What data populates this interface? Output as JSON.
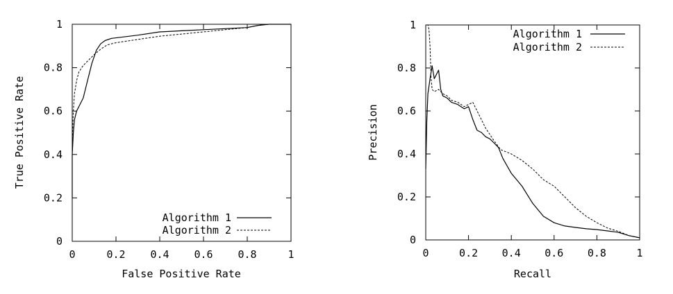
{
  "chart_data": [
    {
      "type": "line",
      "title": "",
      "xlabel": "False Positive Rate",
      "ylabel": "True Positive Rate",
      "xlim": [
        0,
        1
      ],
      "ylim": [
        0,
        1
      ],
      "x_ticks": [
        "0",
        "0.2",
        "0.4",
        "0.6",
        "0.8",
        "1"
      ],
      "y_ticks": [
        "0",
        "0.2",
        "0.4",
        "0.6",
        "0.8",
        "1"
      ],
      "grid": false,
      "legend_position": "bottom-right",
      "series": [
        {
          "name": "Algorithm 1",
          "style": "solid",
          "x": [
            0.0,
            0.0,
            0.005,
            0.01,
            0.02,
            0.03,
            0.05,
            0.07,
            0.09,
            0.11,
            0.13,
            0.15,
            0.18,
            0.22,
            0.3,
            0.4,
            0.5,
            0.6,
            0.7,
            0.8,
            0.85,
            0.9,
            1.0
          ],
          "y": [
            0.2,
            0.4,
            0.5,
            0.56,
            0.6,
            0.62,
            0.66,
            0.74,
            0.82,
            0.88,
            0.91,
            0.925,
            0.935,
            0.94,
            0.95,
            0.965,
            0.97,
            0.975,
            0.98,
            0.985,
            0.995,
            1.0,
            1.0
          ]
        },
        {
          "name": "Algorithm 2",
          "style": "dashed",
          "x": [
            0.0,
            0.0,
            0.005,
            0.01,
            0.02,
            0.03,
            0.05,
            0.07,
            0.1,
            0.13,
            0.16,
            0.2,
            0.3,
            0.4,
            0.5,
            0.6,
            0.7,
            0.8,
            0.85,
            0.9,
            1.0
          ],
          "y": [
            0.2,
            0.45,
            0.6,
            0.68,
            0.74,
            0.78,
            0.81,
            0.83,
            0.86,
            0.885,
            0.905,
            0.915,
            0.93,
            0.945,
            0.955,
            0.965,
            0.975,
            0.985,
            0.995,
            1.0,
            1.0
          ]
        }
      ]
    },
    {
      "type": "line",
      "title": "",
      "xlabel": "Recall",
      "ylabel": "Precision",
      "xlim": [
        0,
        1
      ],
      "ylim": [
        0,
        1
      ],
      "x_ticks": [
        "0",
        "0.2",
        "0.4",
        "0.6",
        "0.8",
        "1"
      ],
      "y_ticks": [
        "0",
        "0.2",
        "0.4",
        "0.6",
        "0.8",
        "1"
      ],
      "grid": false,
      "legend_position": "top-right",
      "series": [
        {
          "name": "Algorithm 1",
          "style": "solid",
          "x": [
            0.0,
            0.005,
            0.01,
            0.02,
            0.03,
            0.04,
            0.05,
            0.06,
            0.07,
            0.08,
            0.1,
            0.12,
            0.15,
            0.18,
            0.2,
            0.22,
            0.24,
            0.26,
            0.28,
            0.3,
            0.32,
            0.34,
            0.36,
            0.4,
            0.45,
            0.5,
            0.55,
            0.6,
            0.65,
            0.7,
            0.75,
            0.8,
            0.85,
            0.9,
            0.95,
            1.0
          ],
          "y": [
            0.33,
            0.55,
            0.68,
            0.75,
            0.81,
            0.75,
            0.77,
            0.79,
            0.7,
            0.67,
            0.66,
            0.64,
            0.63,
            0.61,
            0.62,
            0.56,
            0.51,
            0.5,
            0.48,
            0.47,
            0.45,
            0.43,
            0.38,
            0.31,
            0.25,
            0.17,
            0.11,
            0.08,
            0.065,
            0.058,
            0.052,
            0.048,
            0.042,
            0.035,
            0.02,
            0.01
          ]
        },
        {
          "name": "Algorithm 2",
          "style": "dashed",
          "x": [
            0.005,
            0.01,
            0.015,
            0.02,
            0.025,
            0.03,
            0.04,
            0.06,
            0.08,
            0.1,
            0.12,
            0.15,
            0.18,
            0.2,
            0.22,
            0.24,
            0.26,
            0.28,
            0.3,
            0.32,
            0.35,
            0.4,
            0.45,
            0.5,
            0.55,
            0.6,
            0.65,
            0.7,
            0.75,
            0.8,
            0.85,
            0.9,
            0.95,
            1.0
          ],
          "y": [
            1.0,
            1.0,
            0.98,
            0.9,
            0.75,
            0.7,
            0.69,
            0.7,
            0.68,
            0.67,
            0.65,
            0.64,
            0.62,
            0.63,
            0.64,
            0.6,
            0.56,
            0.52,
            0.49,
            0.46,
            0.42,
            0.4,
            0.37,
            0.33,
            0.28,
            0.25,
            0.2,
            0.15,
            0.11,
            0.08,
            0.055,
            0.04,
            0.02,
            0.01
          ]
        }
      ]
    }
  ]
}
